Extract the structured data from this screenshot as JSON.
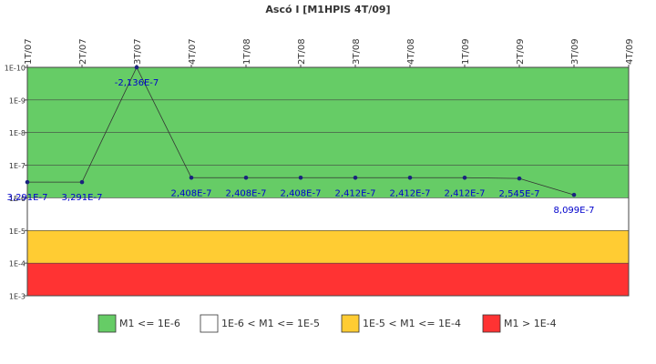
{
  "chart_data": {
    "type": "line",
    "title": "Ascó I [M1HPIS 4T/09]",
    "categories": [
      "1T/07",
      "2T/07",
      "3T/07",
      "4T/07",
      "1T/08",
      "2T/08",
      "3T/08",
      "4T/08",
      "1T/09",
      "2T/09",
      "3T/09",
      "4T/09"
    ],
    "values": [
      3.291e-07,
      3.291e-07,
      -2.136e-07,
      2.408e-07,
      2.408e-07,
      2.408e-07,
      2.412e-07,
      2.412e-07,
      2.412e-07,
      2.545e-07,
      8.099e-07,
      null
    ],
    "value_labels": [
      "3,291E-7",
      "3,291E-7",
      "-2,136E-7",
      "2,408E-7",
      "2,408E-7",
      "2,408E-7",
      "2,412E-7",
      "2,412E-7",
      "2,412E-7",
      "2,545E-7",
      "8,099E-7",
      null
    ],
    "color": "#333333",
    "marker_color": "#1a237e",
    "label_color": "#0000cc",
    "yscale": "log",
    "yinverted": true,
    "ylim": [
      1e-10,
      0.001
    ],
    "yticks": [
      {
        "value": 1e-10,
        "label": "1E-10"
      },
      {
        "value": 1e-09,
        "label": "1E-9"
      },
      {
        "value": 1e-08,
        "label": "1E-8"
      },
      {
        "value": 1e-07,
        "label": "1E-7"
      },
      {
        "value": 1e-06,
        "label": "1E-6"
      },
      {
        "value": 1e-05,
        "label": "1E-5"
      },
      {
        "value": 0.0001,
        "label": "1E-4"
      },
      {
        "value": 0.001,
        "label": "1E-3"
      }
    ],
    "bands": [
      {
        "name": "M1 <= 1E-6",
        "color": "#66cc66",
        "from": 1e-10,
        "to": 1e-06
      },
      {
        "name": "1E-6 < M1 <= 1E-5",
        "color": "#ffffff",
        "from": 1e-06,
        "to": 1e-05
      },
      {
        "name": "1E-5 < M1 <= 1E-4",
        "color": "#ffcc33",
        "from": 1e-05,
        "to": 0.0001
      },
      {
        "name": "M1 > 1E-4",
        "color": "#ff3333",
        "from": 0.0001,
        "to": 0.001
      }
    ],
    "legend": "bottom"
  }
}
